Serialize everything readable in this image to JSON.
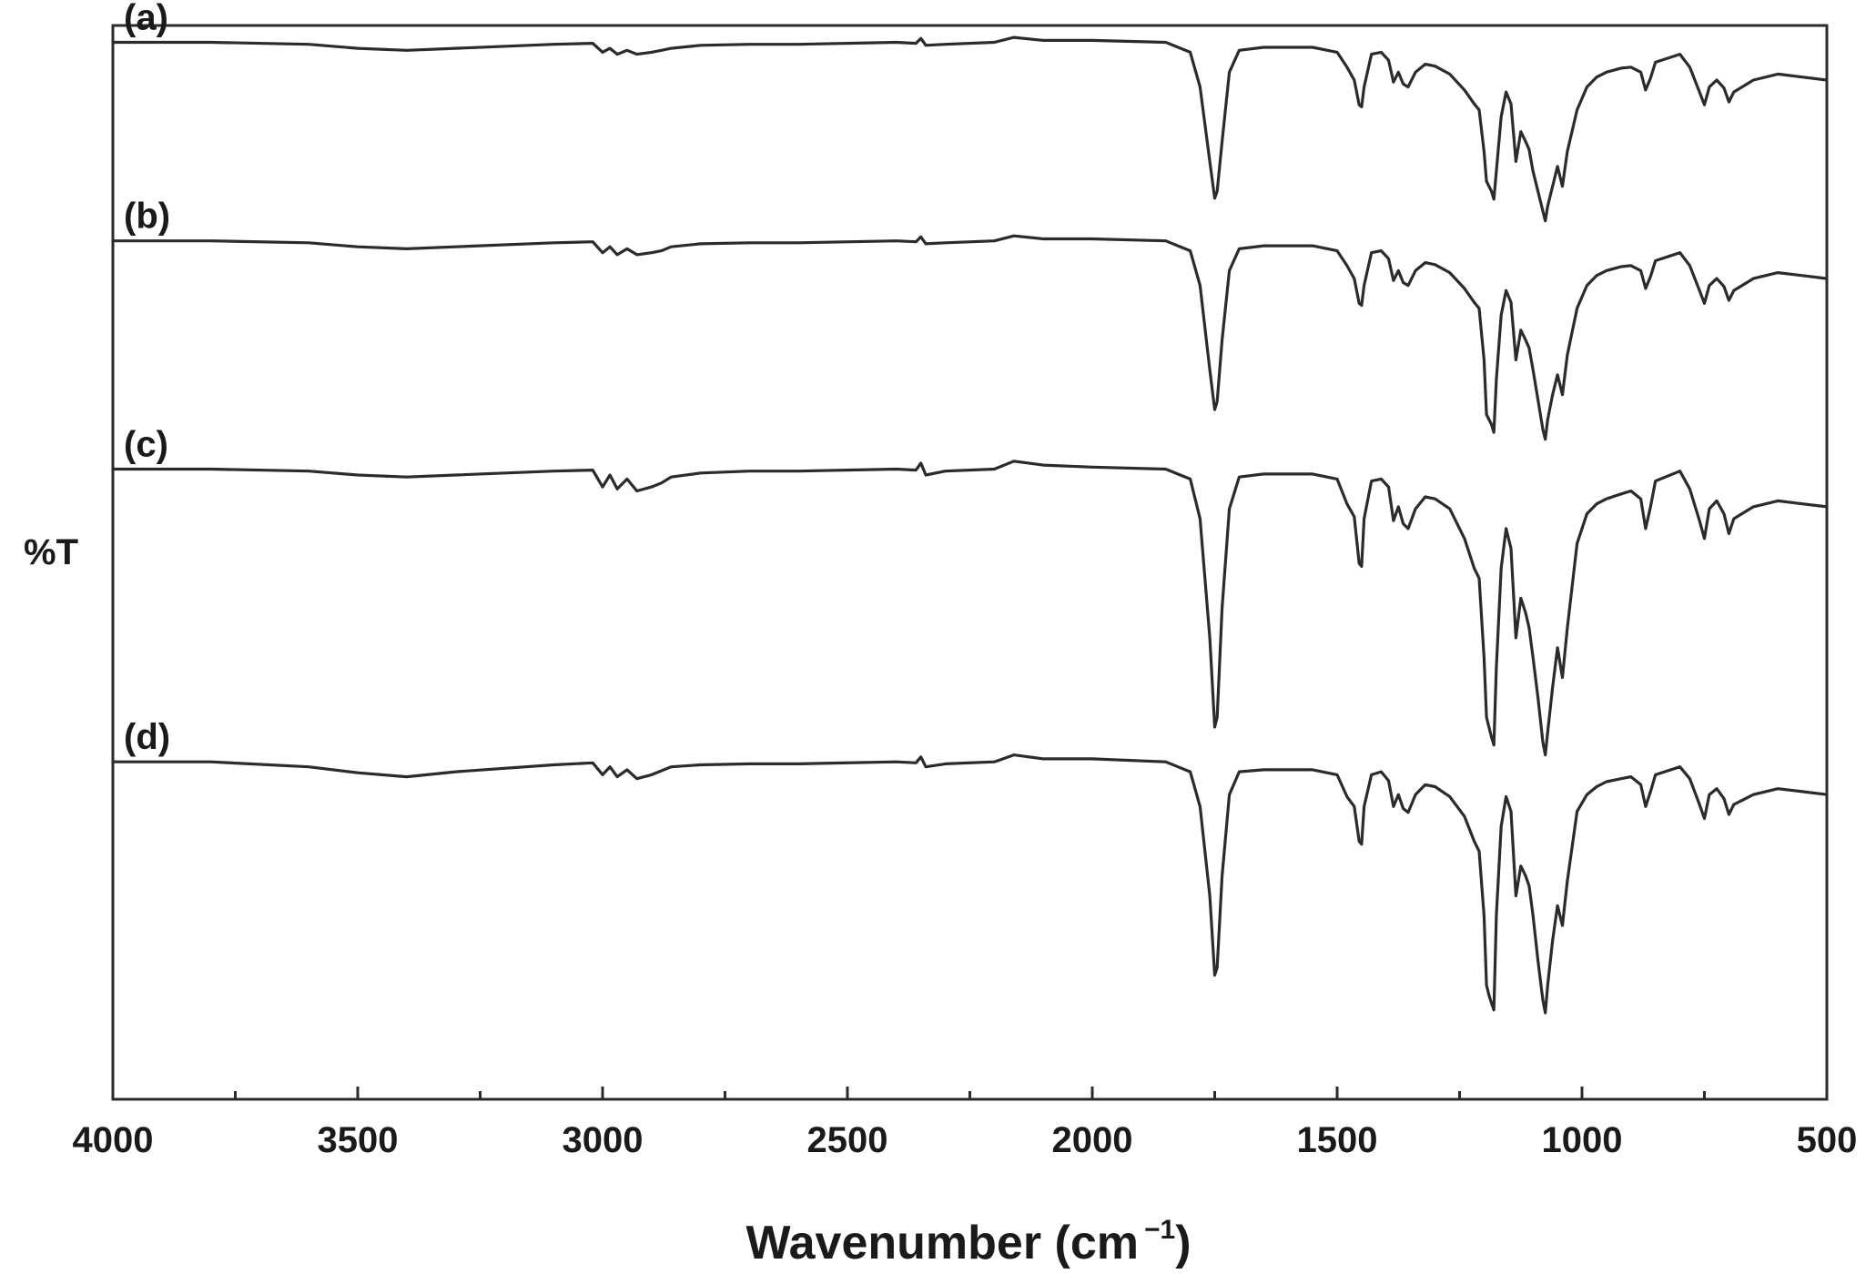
{
  "chart_data": {
    "type": "line",
    "xlabel": "Wavenumber (cm",
    "xlabel_sup": "−1",
    "xlabel_close": ")",
    "ylabel": "%T",
    "xlim": [
      4000,
      500
    ],
    "x_reversed": true,
    "x_ticks": [
      4000,
      3500,
      3000,
      2500,
      2000,
      1500,
      1000,
      500
    ],
    "x_tick_labels": [
      "4000",
      "3500",
      "3000",
      "2500",
      "2000",
      "1500",
      "1000",
      "500"
    ],
    "x_minor_step": 250,
    "y_ticks_shown": false,
    "ylim": [
      -1065,
      17
    ],
    "grid": false,
    "legend": "none",
    "series_note_units": "relative %T offset (arbitrary units, curves vertically stacked)",
    "series": [
      {
        "name": "(a)",
        "x": [
          4000,
          3800,
          3600,
          3500,
          3400,
          3300,
          3100,
          3020,
          3000,
          2985,
          2970,
          2950,
          2930,
          2900,
          2880,
          2860,
          2800,
          2700,
          2600,
          2400,
          2360,
          2350,
          2340,
          2300,
          2200,
          2160,
          2100,
          2000,
          1850,
          1800,
          1780,
          1760,
          1750,
          1745,
          1735,
          1720,
          1700,
          1650,
          1550,
          1500,
          1480,
          1465,
          1455,
          1450,
          1445,
          1430,
          1410,
          1395,
          1385,
          1375,
          1365,
          1355,
          1340,
          1320,
          1300,
          1270,
          1240,
          1220,
          1210,
          1200,
          1195,
          1190,
          1185,
          1180,
          1175,
          1165,
          1155,
          1145,
          1135,
          1125,
          1115,
          1108,
          1100,
          1090,
          1080,
          1075,
          1070,
          1060,
          1050,
          1040,
          1030,
          1010,
          990,
          970,
          950,
          920,
          900,
          880,
          870,
          860,
          850,
          800,
          780,
          760,
          750,
          740,
          725,
          710,
          700,
          690,
          650,
          600,
          550,
          500
        ],
        "values": [
          0,
          0,
          -2,
          -6,
          -8,
          -6,
          -2,
          -1,
          -10,
          -6,
          -12,
          -8,
          -12,
          -10,
          -8,
          -6,
          -3,
          -2,
          -2,
          0,
          -1,
          4,
          -3,
          -2,
          0,
          5,
          2,
          2,
          0,
          -10,
          -45,
          -120,
          -157,
          -150,
          -100,
          -30,
          -8,
          -5,
          -5,
          -10,
          -25,
          -38,
          -63,
          -65,
          -45,
          -12,
          -10,
          -18,
          -40,
          -30,
          -42,
          -45,
          -30,
          -22,
          -24,
          -32,
          -48,
          -62,
          -68,
          -110,
          -140,
          -145,
          -150,
          -158,
          -130,
          -75,
          -50,
          -62,
          -120,
          -90,
          -100,
          -108,
          -130,
          -150,
          -170,
          -180,
          -165,
          -145,
          -125,
          -145,
          -110,
          -68,
          -45,
          -35,
          -30,
          -26,
          -25,
          -30,
          -48,
          -36,
          -20,
          -12,
          -25,
          -50,
          -63,
          -45,
          -38,
          -46,
          -60,
          -50,
          -38,
          -32,
          -35,
          -38
        ]
      },
      {
        "name": "(b)",
        "x": [
          4000,
          3800,
          3600,
          3500,
          3400,
          3300,
          3100,
          3020,
          3000,
          2985,
          2970,
          2950,
          2930,
          2900,
          2880,
          2860,
          2800,
          2700,
          2600,
          2400,
          2360,
          2350,
          2340,
          2300,
          2200,
          2160,
          2100,
          2000,
          1850,
          1800,
          1780,
          1760,
          1750,
          1745,
          1735,
          1720,
          1700,
          1650,
          1550,
          1500,
          1480,
          1465,
          1455,
          1450,
          1445,
          1430,
          1410,
          1395,
          1385,
          1375,
          1365,
          1355,
          1340,
          1320,
          1300,
          1270,
          1240,
          1220,
          1210,
          1200,
          1195,
          1190,
          1185,
          1180,
          1175,
          1165,
          1155,
          1145,
          1135,
          1125,
          1115,
          1108,
          1100,
          1090,
          1080,
          1075,
          1070,
          1060,
          1050,
          1040,
          1030,
          1010,
          990,
          970,
          950,
          920,
          900,
          880,
          870,
          860,
          850,
          800,
          780,
          760,
          750,
          740,
          725,
          710,
          700,
          690,
          650,
          600,
          550,
          500
        ],
        "values": [
          -200,
          -200,
          -202,
          -206,
          -208,
          -206,
          -202,
          -201,
          -212,
          -206,
          -214,
          -208,
          -214,
          -212,
          -210,
          -206,
          -203,
          -202,
          -202,
          -200,
          -201,
          -196,
          -203,
          -202,
          -200,
          -195,
          -198,
          -198,
          -200,
          -210,
          -245,
          -330,
          -370,
          -362,
          -300,
          -230,
          -208,
          -205,
          -205,
          -210,
          -225,
          -238,
          -263,
          -265,
          -245,
          -212,
          -210,
          -218,
          -240,
          -230,
          -242,
          -245,
          -230,
          -222,
          -224,
          -232,
          -248,
          -262,
          -268,
          -320,
          -375,
          -380,
          -385,
          -393,
          -340,
          -275,
          -250,
          -262,
          -320,
          -290,
          -300,
          -308,
          -330,
          -360,
          -390,
          -400,
          -380,
          -355,
          -335,
          -355,
          -315,
          -268,
          -245,
          -235,
          -230,
          -226,
          -225,
          -230,
          -248,
          -236,
          -220,
          -212,
          -225,
          -250,
          -263,
          -245,
          -238,
          -246,
          -260,
          -250,
          -238,
          -232,
          -235,
          -238
        ]
      },
      {
        "name": "(c)",
        "x": [
          4000,
          3800,
          3600,
          3500,
          3400,
          3300,
          3100,
          3020,
          3000,
          2985,
          2970,
          2950,
          2930,
          2900,
          2880,
          2860,
          2800,
          2700,
          2600,
          2400,
          2360,
          2350,
          2340,
          2300,
          2200,
          2160,
          2100,
          2000,
          1850,
          1800,
          1780,
          1760,
          1750,
          1745,
          1735,
          1720,
          1700,
          1650,
          1550,
          1500,
          1480,
          1465,
          1455,
          1450,
          1445,
          1430,
          1410,
          1395,
          1385,
          1375,
          1365,
          1355,
          1340,
          1320,
          1300,
          1270,
          1240,
          1220,
          1210,
          1200,
          1195,
          1190,
          1185,
          1180,
          1175,
          1165,
          1155,
          1145,
          1135,
          1125,
          1115,
          1108,
          1100,
          1090,
          1080,
          1075,
          1070,
          1060,
          1050,
          1040,
          1030,
          1010,
          990,
          970,
          950,
          920,
          900,
          880,
          870,
          860,
          850,
          800,
          780,
          760,
          750,
          740,
          725,
          710,
          700,
          690,
          650,
          600,
          550,
          500
        ],
        "values": [
          -430,
          -430,
          -432,
          -436,
          -438,
          -436,
          -432,
          -431,
          -448,
          -436,
          -450,
          -440,
          -452,
          -448,
          -444,
          -438,
          -434,
          -432,
          -432,
          -430,
          -431,
          -424,
          -436,
          -432,
          -430,
          -422,
          -426,
          -428,
          -430,
          -440,
          -480,
          -600,
          -690,
          -680,
          -570,
          -470,
          -438,
          -435,
          -435,
          -440,
          -465,
          -478,
          -525,
          -528,
          -480,
          -442,
          -440,
          -448,
          -482,
          -468,
          -485,
          -490,
          -470,
          -458,
          -460,
          -470,
          -500,
          -530,
          -540,
          -620,
          -680,
          -690,
          -700,
          -708,
          -630,
          -530,
          -490,
          -510,
          -600,
          -560,
          -575,
          -590,
          -620,
          -660,
          -705,
          -718,
          -695,
          -650,
          -610,
          -640,
          -590,
          -505,
          -475,
          -465,
          -460,
          -455,
          -452,
          -460,
          -490,
          -468,
          -442,
          -432,
          -450,
          -482,
          -500,
          -470,
          -462,
          -475,
          -495,
          -480,
          -468,
          -462,
          -465,
          -468
        ]
      },
      {
        "name": "(d)",
        "x": [
          4000,
          3800,
          3600,
          3500,
          3400,
          3300,
          3100,
          3020,
          3000,
          2985,
          2970,
          2950,
          2930,
          2900,
          2880,
          2860,
          2800,
          2700,
          2600,
          2400,
          2360,
          2350,
          2340,
          2300,
          2200,
          2160,
          2100,
          2000,
          1850,
          1800,
          1780,
          1760,
          1750,
          1745,
          1735,
          1720,
          1700,
          1650,
          1550,
          1500,
          1480,
          1465,
          1455,
          1450,
          1445,
          1430,
          1410,
          1395,
          1385,
          1375,
          1365,
          1355,
          1340,
          1320,
          1300,
          1270,
          1240,
          1220,
          1210,
          1200,
          1195,
          1190,
          1185,
          1180,
          1175,
          1165,
          1155,
          1145,
          1135,
          1125,
          1115,
          1108,
          1100,
          1090,
          1080,
          1075,
          1070,
          1060,
          1050,
          1040,
          1030,
          1010,
          990,
          970,
          950,
          920,
          900,
          880,
          870,
          860,
          850,
          800,
          780,
          760,
          750,
          740,
          725,
          710,
          700,
          690,
          650,
          600,
          550,
          500
        ],
        "values": [
          -725,
          -725,
          -730,
          -736,
          -740,
          -735,
          -728,
          -726,
          -738,
          -730,
          -740,
          -733,
          -742,
          -738,
          -734,
          -730,
          -728,
          -727,
          -727,
          -725,
          -726,
          -720,
          -730,
          -727,
          -725,
          -718,
          -722,
          -722,
          -725,
          -735,
          -770,
          -860,
          -940,
          -932,
          -840,
          -758,
          -735,
          -733,
          -733,
          -738,
          -760,
          -770,
          -805,
          -808,
          -770,
          -738,
          -735,
          -744,
          -770,
          -758,
          -772,
          -776,
          -758,
          -748,
          -750,
          -760,
          -780,
          -805,
          -815,
          -880,
          -950,
          -960,
          -968,
          -975,
          -880,
          -790,
          -760,
          -775,
          -860,
          -830,
          -840,
          -850,
          -880,
          -925,
          -965,
          -978,
          -950,
          -905,
          -870,
          -890,
          -845,
          -775,
          -758,
          -750,
          -745,
          -742,
          -740,
          -748,
          -770,
          -755,
          -738,
          -730,
          -742,
          -768,
          -782,
          -758,
          -752,
          -762,
          -778,
          -768,
          -758,
          -752,
          -755,
          -758
        ]
      }
    ]
  }
}
